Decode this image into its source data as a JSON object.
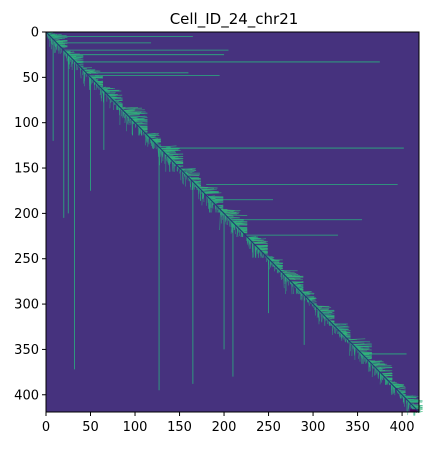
{
  "chart_data": {
    "type": "heatmap",
    "title": "Cell_ID_24_chr21",
    "xlabel": "",
    "ylabel": "",
    "matrix_size": 419,
    "xlim": [
      0,
      419
    ],
    "ylim": [
      419,
      0
    ],
    "x_ticks": [
      0,
      50,
      100,
      150,
      200,
      250,
      300,
      350,
      400
    ],
    "y_ticks": [
      0,
      50,
      100,
      150,
      200,
      250,
      300,
      350,
      400
    ],
    "colormap": "viridis",
    "colors": {
      "background": "#46327e",
      "contact": "#2ab07f",
      "contact_strong": "#35b779",
      "diagonal": "#1f3e72",
      "self_contact": "#440154"
    },
    "diagonal_blocks": [
      [
        0,
        20
      ],
      [
        20,
        38
      ],
      [
        38,
        60
      ],
      [
        60,
        82
      ],
      [
        82,
        110
      ],
      [
        110,
        125
      ],
      [
        125,
        150
      ],
      [
        150,
        170
      ],
      [
        170,
        195
      ],
      [
        195,
        222
      ],
      [
        222,
        245
      ],
      [
        245,
        262
      ],
      [
        262,
        285
      ],
      [
        285,
        300
      ],
      [
        300,
        320
      ],
      [
        320,
        338
      ],
      [
        338,
        362
      ],
      [
        362,
        385
      ],
      [
        385,
        400
      ],
      [
        400,
        419
      ]
    ],
    "long_range_contacts": [
      {
        "row": 5,
        "from": 10,
        "to": 165
      },
      {
        "row": 12,
        "from": 15,
        "to": 118
      },
      {
        "row": 20,
        "from": 20,
        "to": 205
      },
      {
        "row": 25,
        "from": 25,
        "to": 200
      },
      {
        "row": 33,
        "from": 32,
        "to": 375
      },
      {
        "row": 45,
        "from": 50,
        "to": 160
      },
      {
        "row": 48,
        "from": 55,
        "to": 195
      },
      {
        "row": 128,
        "from": 135,
        "to": 402
      },
      {
        "row": 168,
        "from": 180,
        "to": 395
      },
      {
        "row": 185,
        "from": 190,
        "to": 255
      },
      {
        "row": 207,
        "from": 215,
        "to": 355
      },
      {
        "row": 224,
        "from": 225,
        "to": 328
      },
      {
        "row": 355,
        "from": 360,
        "to": 405
      }
    ],
    "vertical_contacts": [
      {
        "col": 8,
        "from": 8,
        "to": 120
      },
      {
        "col": 20,
        "from": 20,
        "to": 205
      },
      {
        "col": 25,
        "from": 25,
        "to": 200
      },
      {
        "col": 32,
        "from": 32,
        "to": 372
      },
      {
        "col": 50,
        "from": 50,
        "to": 175
      },
      {
        "col": 65,
        "from": 65,
        "to": 130
      },
      {
        "col": 127,
        "from": 127,
        "to": 395
      },
      {
        "col": 165,
        "from": 165,
        "to": 388
      },
      {
        "col": 200,
        "from": 200,
        "to": 350
      },
      {
        "col": 210,
        "from": 210,
        "to": 380
      },
      {
        "col": 250,
        "from": 250,
        "to": 310
      },
      {
        "col": 290,
        "from": 290,
        "to": 345
      }
    ]
  }
}
